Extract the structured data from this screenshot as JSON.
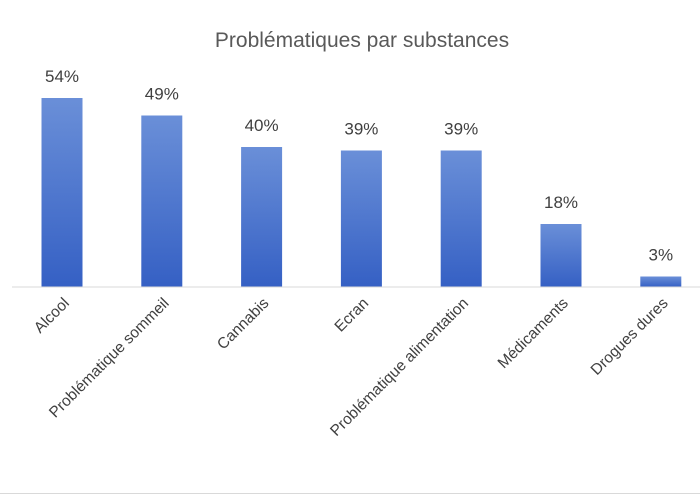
{
  "chart_data": {
    "type": "bar",
    "title": "Problématiques par substances",
    "categories": [
      "Alcool",
      "Problématique sommeil",
      "Cannabis",
      "Ecran",
      "Problématique alimentation",
      "Médicaments",
      "Drogues dures"
    ],
    "values": [
      54,
      49,
      40,
      39,
      39,
      18,
      3
    ],
    "value_labels": [
      "54%",
      "49%",
      "40%",
      "39%",
      "39%",
      "18%",
      "3%"
    ],
    "unit": "%",
    "ylim": [
      0,
      54
    ],
    "grid": false,
    "legend": "none",
    "xlabel": "",
    "ylabel": "",
    "colors": {
      "bar_top": "#6a8fd8",
      "bar_bottom": "#3560c4",
      "axis": "#d9d9d9"
    }
  }
}
